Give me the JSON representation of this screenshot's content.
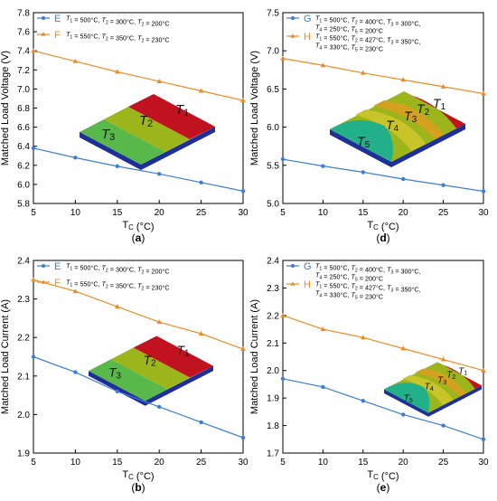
{
  "colors": {
    "blue": "#3b7dd8",
    "orange": "#f08a24",
    "red": "#c0121f",
    "olive": "#9cb51a",
    "green": "#58b84a",
    "teal": "#22b08a",
    "navy": "#1f2f9a"
  },
  "chart_data": [
    {
      "panel": "(a)",
      "type": "line",
      "xlabel": "T_C (°C)",
      "ylabel": "Matched Load Voltage (V)",
      "xlim": [
        5,
        30
      ],
      "ylim": [
        5.8,
        7.8
      ],
      "xticks": [
        "5",
        "10",
        "15",
        "20",
        "25",
        "30"
      ],
      "yticks": [
        "5.8",
        "6.0",
        "6.2",
        "6.4",
        "6.6",
        "6.8",
        "7.0",
        "7.2",
        "7.4",
        "7.6",
        "7.8"
      ],
      "x": [
        5,
        10,
        15,
        20,
        25,
        30
      ],
      "series": [
        {
          "name": "E",
          "desc_lines": [
            "T1 = 500°C, T2 = 300°C, T2 = 200°C"
          ],
          "color": "blue",
          "marker": "circle",
          "values": [
            6.38,
            6.28,
            6.19,
            6.11,
            6.02,
            5.93
          ]
        },
        {
          "name": "F",
          "desc_lines": [
            "T1 = 550°C, T2 = 350°C, T2 = 230°C"
          ],
          "color": "orange",
          "marker": "triangle",
          "values": [
            7.4,
            7.29,
            7.18,
            7.08,
            6.98,
            6.88
          ]
        }
      ],
      "inset_labels": [
        "T3",
        "T2",
        "T1"
      ]
    },
    {
      "panel": "(d)",
      "type": "line",
      "xlabel": "T_C (°C)",
      "ylabel": "Matched Load Voltage (V)",
      "xlim": [
        5,
        30
      ],
      "ylim": [
        5.0,
        7.5
      ],
      "xticks": [
        "5",
        "10",
        "15",
        "20",
        "25",
        "30"
      ],
      "yticks": [
        "5.0",
        "5.5",
        "6.0",
        "6.5",
        "7.0",
        "7.5"
      ],
      "x": [
        5,
        10,
        15,
        20,
        25,
        30
      ],
      "series": [
        {
          "name": "G",
          "desc_lines": [
            "T1 = 500°C, T2 = 400°C, T3 = 300°C,",
            "T4 = 250°C,        T5 = 200°C"
          ],
          "color": "blue",
          "marker": "circle",
          "values": [
            5.58,
            5.49,
            5.41,
            5.32,
            5.24,
            5.16
          ]
        },
        {
          "name": "H",
          "desc_lines": [
            "T1 = 550°C, T2 = 427°C, T3 = 350°C,",
            "T4 = 330°C,        T5 = 230°C"
          ],
          "color": "orange",
          "marker": "triangle",
          "values": [
            6.9,
            6.81,
            6.71,
            6.62,
            6.53,
            6.44
          ]
        }
      ],
      "inset_labels": [
        "T5",
        "T4",
        "T3",
        "T2",
        "T1"
      ]
    },
    {
      "panel": "(b)",
      "type": "line",
      "xlabel": "T_C (°C)",
      "ylabel": "Matched Load Current (A)",
      "xlim": [
        5,
        30
      ],
      "ylim": [
        1.9,
        2.4
      ],
      "xticks": [
        "5",
        "10",
        "15",
        "20",
        "25",
        "30"
      ],
      "yticks": [
        "1.9",
        "2.0",
        "2.1",
        "2.2",
        "2.3",
        "2.4"
      ],
      "x": [
        5,
        10,
        15,
        20,
        25,
        30
      ],
      "series": [
        {
          "name": "E",
          "desc_lines": [
            "T1 = 500°C, T2 = 300°C, T2 = 200°C"
          ],
          "color": "blue",
          "marker": "circle",
          "values": [
            2.15,
            2.11,
            2.06,
            2.02,
            1.98,
            1.94
          ]
        },
        {
          "name": "F",
          "desc_lines": [
            "T1 = 550°C, T2 = 350°C, T2 = 230°C"
          ],
          "color": "orange",
          "marker": "triangle",
          "values": [
            2.35,
            2.32,
            2.28,
            2.24,
            2.21,
            2.17
          ]
        }
      ],
      "inset_labels": [
        "T3",
        "T2",
        "T1"
      ]
    },
    {
      "panel": "(e)",
      "type": "line",
      "xlabel": "T_C (°C)",
      "ylabel": "Matched Load Current (A)",
      "xlim": [
        5,
        30
      ],
      "ylim": [
        1.7,
        2.4
      ],
      "xticks": [
        "5",
        "10",
        "15",
        "20",
        "25",
        "30"
      ],
      "yticks": [
        "1.7",
        "1.8",
        "1.9",
        "2.0",
        "2.1",
        "2.2",
        "2.3",
        "2.4"
      ],
      "x": [
        5,
        10,
        15,
        20,
        25,
        30
      ],
      "series": [
        {
          "name": "G",
          "desc_lines": [
            "T1 = 500°C, T2 = 400°C, T3 = 300°C,",
            "T4 = 250°C,        T5 = 200°C"
          ],
          "color": "blue",
          "marker": "circle",
          "values": [
            1.97,
            1.94,
            1.89,
            1.84,
            1.8,
            1.75
          ]
        },
        {
          "name": "H",
          "desc_lines": [
            "T1 = 550°C, T2 = 427°C, T3 = 350°C,",
            "T4 = 330°C,        T5 = 230°C"
          ],
          "color": "orange",
          "marker": "triangle",
          "values": [
            2.2,
            2.15,
            2.12,
            2.08,
            2.04,
            2.0
          ]
        }
      ],
      "inset_labels": [
        "T5",
        "T4",
        "T3",
        "T2",
        "T1"
      ]
    }
  ]
}
